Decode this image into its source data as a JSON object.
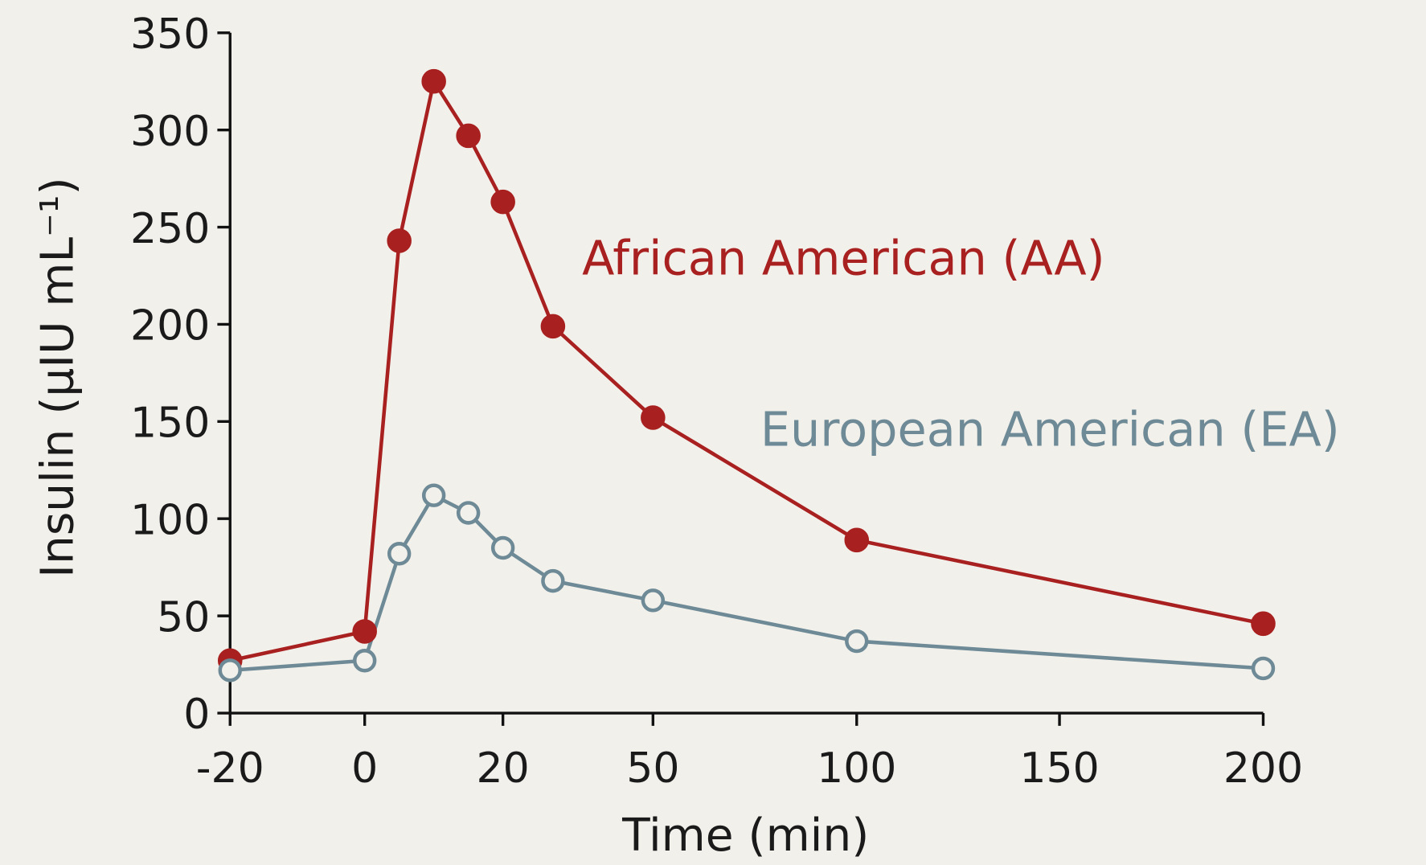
{
  "chart_data": {
    "type": "line",
    "x_label": "Time (min)",
    "y_label": "Insulin (μIU mL⁻¹)",
    "x": [
      -20,
      0,
      5,
      10,
      15,
      20,
      30,
      50,
      100,
      200
    ],
    "series": [
      {
        "name": "African American (AA)",
        "color": "#a8201f",
        "marker": "filled",
        "values": [
          27,
          42,
          243,
          325,
          297,
          263,
          199,
          152,
          89,
          46
        ]
      },
      {
        "name": "European American (EA)",
        "color": "#6e8a96",
        "marker": "open",
        "values": [
          22,
          27,
          82,
          112,
          103,
          85,
          68,
          58,
          37,
          23
        ]
      }
    ],
    "xlim": [
      -20,
      200
    ],
    "xticks": [
      -20,
      0,
      20,
      50,
      100,
      150,
      200
    ],
    "ylim": [
      0,
      350
    ],
    "yticks": [
      0,
      50,
      100,
      150,
      200,
      250,
      300,
      350
    ],
    "grid": false
  }
}
